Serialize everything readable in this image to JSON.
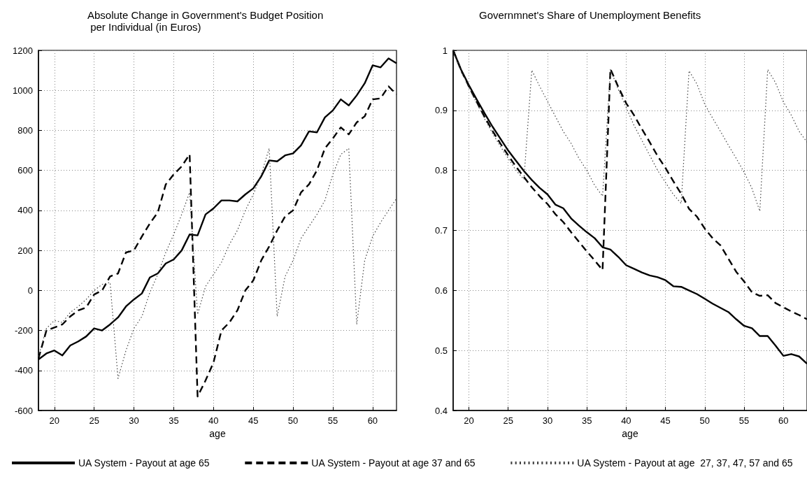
{
  "chart_data": [
    {
      "type": "line",
      "title": "Absolute Change in Government's Budget Position per Individual (in Euros)",
      "xlabel": "age",
      "x": [
        18,
        19,
        20,
        21,
        22,
        23,
        24,
        25,
        26,
        27,
        28,
        29,
        30,
        31,
        32,
        33,
        34,
        35,
        36,
        37,
        38,
        39,
        40,
        41,
        42,
        43,
        44,
        45,
        46,
        47,
        48,
        49,
        50,
        51,
        52,
        53,
        54,
        55,
        56,
        57,
        58,
        59,
        60,
        61,
        62,
        63
      ],
      "xlim": [
        18,
        63
      ],
      "xticks": [
        20,
        25,
        30,
        35,
        40,
        45,
        50,
        55,
        60
      ],
      "ylim": [
        -600,
        1200
      ],
      "yticks": [
        -600,
        -400,
        -200,
        0,
        200,
        400,
        600,
        800,
        1000,
        1200
      ],
      "grid": true,
      "legend": "bottom",
      "marker": "none",
      "series": [
        {
          "name": "UA System - Payout at age 65",
          "color": "#000000",
          "line_style": "solid",
          "values": [
            -345,
            -315,
            -300,
            -325,
            -275,
            -255,
            -230,
            -190,
            -200,
            -170,
            -135,
            -80,
            -45,
            -15,
            65,
            85,
            135,
            155,
            200,
            280,
            275,
            380,
            410,
            450,
            450,
            445,
            480,
            510,
            570,
            650,
            645,
            675,
            685,
            725,
            795,
            790,
            865,
            900,
            955,
            925,
            975,
            1035,
            1125,
            1115,
            1160,
            1135
          ]
        },
        {
          "name": "UA System - Payout at age 37 and 65",
          "color": "#000000",
          "line_style": "dashed",
          "values": [
            -340,
            -200,
            -185,
            -170,
            -130,
            -100,
            -85,
            -20,
            0,
            70,
            85,
            190,
            200,
            270,
            335,
            390,
            530,
            580,
            620,
            680,
            -530,
            -450,
            -360,
            -200,
            -160,
            -100,
            0,
            50,
            150,
            220,
            300,
            370,
            400,
            490,
            530,
            600,
            710,
            760,
            815,
            780,
            840,
            870,
            955,
            960,
            1020,
            980
          ]
        },
        {
          "name": "UA System - Payout at age  27, 37, 47, 57 and 65",
          "color": "#444444",
          "line_style": "dotted",
          "values": [
            -330,
            -190,
            -150,
            -160,
            -110,
            -80,
            -45,
            0,
            30,
            40,
            -440,
            -300,
            -190,
            -130,
            -10,
            80,
            190,
            280,
            380,
            490,
            -120,
            20,
            80,
            140,
            230,
            300,
            400,
            480,
            580,
            710,
            -130,
            70,
            150,
            260,
            320,
            380,
            450,
            580,
            680,
            710,
            -170,
            150,
            270,
            340,
            400,
            460
          ]
        }
      ]
    },
    {
      "type": "line",
      "title": "Governmnet's Share of Unemployment Benefits",
      "xlabel": "age",
      "x": [
        18,
        19,
        20,
        21,
        22,
        23,
        24,
        25,
        26,
        27,
        28,
        29,
        30,
        31,
        32,
        33,
        34,
        35,
        36,
        37,
        38,
        39,
        40,
        41,
        42,
        43,
        44,
        45,
        46,
        47,
        48,
        49,
        50,
        51,
        52,
        53,
        54,
        55,
        56,
        57,
        58,
        59,
        60,
        61,
        62,
        63
      ],
      "xlim": [
        18,
        63
      ],
      "xticks": [
        20,
        25,
        30,
        35,
        40,
        45,
        50,
        55,
        60
      ],
      "ylim": [
        0.4,
        1
      ],
      "yticks": [
        0.4,
        0.5,
        0.6,
        0.7,
        0.8,
        0.9,
        1
      ],
      "grid": true,
      "marker": "none",
      "series": [
        {
          "color": "#000000",
          "line_style": "solid",
          "values": [
            1.0,
            0.968,
            0.942,
            0.918,
            0.895,
            0.873,
            0.853,
            0.833,
            0.816,
            0.799,
            0.784,
            0.771,
            0.76,
            0.743,
            0.737,
            0.72,
            0.708,
            0.697,
            0.687,
            0.672,
            0.668,
            0.656,
            0.642,
            0.636,
            0.63,
            0.625,
            0.622,
            0.617,
            0.607,
            0.606,
            0.6,
            0.594,
            0.586,
            0.578,
            0.571,
            0.564,
            0.552,
            0.541,
            0.537,
            0.524,
            0.524,
            0.508,
            0.491,
            0.494,
            0.49,
            0.478
          ]
        },
        {
          "color": "#000000",
          "line_style": "dashed",
          "values": [
            1.0,
            0.967,
            0.94,
            0.914,
            0.889,
            0.866,
            0.845,
            0.825,
            0.806,
            0.789,
            0.772,
            0.757,
            0.744,
            0.727,
            0.714,
            0.697,
            0.681,
            0.665,
            0.65,
            0.634,
            0.969,
            0.939,
            0.912,
            0.892,
            0.869,
            0.847,
            0.824,
            0.804,
            0.782,
            0.761,
            0.736,
            0.723,
            0.703,
            0.687,
            0.675,
            0.653,
            0.631,
            0.615,
            0.597,
            0.591,
            0.592,
            0.579,
            0.572,
            0.565,
            0.559,
            0.552
          ]
        },
        {
          "color": "#444444",
          "line_style": "dotted",
          "values": [
            1.0,
            0.966,
            0.938,
            0.912,
            0.886,
            0.862,
            0.84,
            0.82,
            0.8,
            0.785,
            0.967,
            0.94,
            0.915,
            0.89,
            0.865,
            0.845,
            0.82,
            0.8,
            0.775,
            0.757,
            0.968,
            0.935,
            0.905,
            0.875,
            0.85,
            0.825,
            0.8,
            0.78,
            0.76,
            0.745,
            0.966,
            0.944,
            0.91,
            0.887,
            0.865,
            0.842,
            0.82,
            0.797,
            0.77,
            0.732,
            0.968,
            0.946,
            0.914,
            0.892,
            0.865,
            0.847
          ]
        }
      ]
    }
  ]
}
